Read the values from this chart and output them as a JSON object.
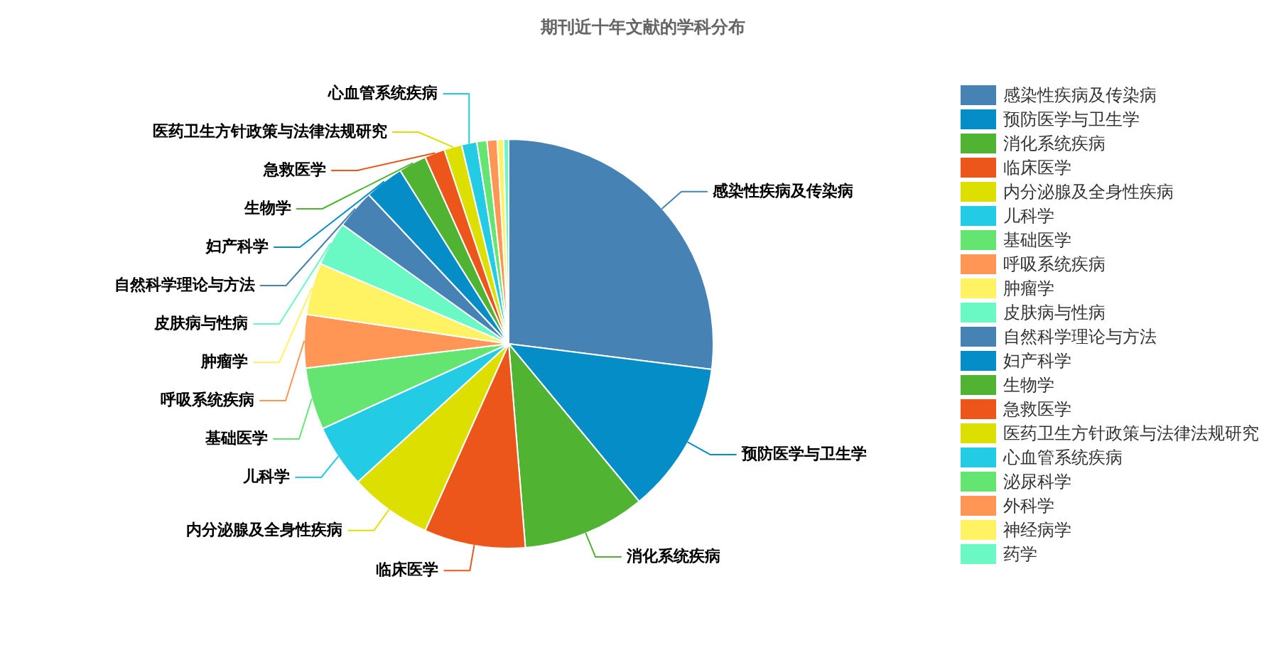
{
  "chart_data": {
    "type": "pie",
    "title": "期刊近十年文献的学科分布",
    "categories": [
      "感染性疾病及传染病",
      "预防医学与卫生学",
      "消化系统疾病",
      "临床医学",
      "内分泌腺及全身性疾病",
      "儿科学",
      "基础医学",
      "呼吸系统疾病",
      "肿瘤学",
      "皮肤病与性病",
      "自然科学理论与方法",
      "妇产科学",
      "生物学",
      "急救医学",
      "医药卫生方针政策与法律法规研究",
      "心血管系统疾病",
      "泌尿科学",
      "外科学",
      "神经病学",
      "药学"
    ],
    "values": [
      27.0,
      12.0,
      9.7,
      8.0,
      6.5,
      5.0,
      4.9,
      4.2,
      4.1,
      3.5,
      3.1,
      3.1,
      2.2,
      1.6,
      1.4,
      1.2,
      0.8,
      0.8,
      0.5,
      0.4
    ],
    "colors": [
      "#4682b4",
      "#058dc7",
      "#50b432",
      "#ed561b",
      "#dddf00",
      "#24cbe5",
      "#64e572",
      "#ff9655",
      "#fff263",
      "#6af9c4",
      "#4682b4",
      "#058dc7",
      "#50b432",
      "#ed561b",
      "#dddf00",
      "#24cbe5",
      "#64e572",
      "#ff9655",
      "#fff263",
      "#6af9c4"
    ],
    "legend": "right"
  }
}
